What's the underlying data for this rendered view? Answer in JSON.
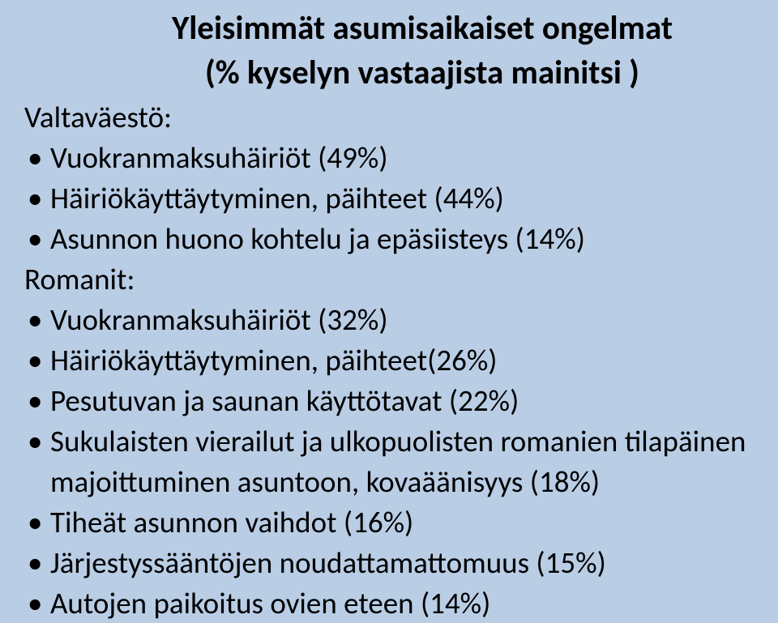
{
  "background_color": "#b9cde5",
  "text_color": "#000000",
  "title": "Yleisimmät asumisaikaiset ongelmat",
  "subtitle": "(% kyselyn vastaajista mainitsi )",
  "title_fontsize": 41,
  "title_fontweight": 700,
  "body_fontsize": 37,
  "groups": [
    {
      "label": "Valtaväestö:",
      "items": [
        "Vuokranmaksuhäiriöt (49%)",
        "Häiriökäyttäytyminen, päihteet (44%)",
        "Asunnon huono kohtelu ja epäsiisteys (14%)"
      ]
    },
    {
      "label": "Romanit:",
      "items": [
        "Vuokranmaksuhäiriöt (32%)",
        "Häiriökäyttäytyminen, päihteet(26%)",
        "Pesutuvan ja saunan käyttötavat (22%)",
        "Sukulaisten vierailut ja ulkopuolisten romanien tilapäinen majoittuminen asuntoon, kovaäänisyys (18%)",
        "Tiheät asunnon vaihdot (16%)",
        "Järjestyssääntöjen noudattamattomuus (15%)",
        "Autojen paikoitus ovien eteen (14%)"
      ]
    }
  ]
}
